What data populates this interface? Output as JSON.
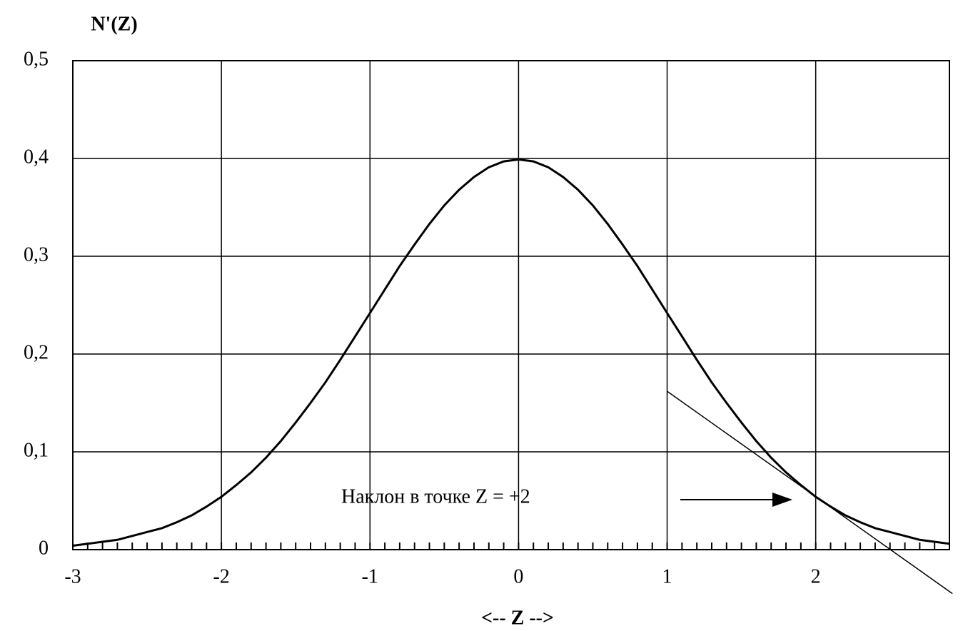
{
  "chart_data": {
    "type": "line",
    "y_label": "N'(Z)",
    "x_label": "<-- Z -->",
    "annotation": "Наклон в точке Z = +2",
    "xlim": [
      -3,
      2.9
    ],
    "ylim": [
      0,
      0.5
    ],
    "xticks": [
      -3,
      -2,
      -1,
      0,
      1,
      2
    ],
    "yticks": [
      0,
      {
        "value": 0.1,
        "label": "0,1"
      },
      {
        "value": 0.2,
        "label": "0,2"
      },
      {
        "value": 0.3,
        "label": "0,3"
      },
      {
        "value": 0.4,
        "label": "0,4"
      },
      {
        "value": 0.5,
        "label": "0,5"
      }
    ],
    "x_minor_step": 0.1,
    "grid": true,
    "color": "#000000",
    "x": [
      -3,
      -2.9,
      -2.8,
      -2.7,
      -2.6,
      -2.5,
      -2.4,
      -2.3,
      -2.2,
      -2.1,
      -2,
      -1.9,
      -1.8,
      -1.7,
      -1.6,
      -1.5,
      -1.4,
      -1.3,
      -1.2,
      -1.1,
      -1,
      -0.9,
      -0.8,
      -0.7,
      -0.6,
      -0.5,
      -0.4,
      -0.3,
      -0.2,
      -0.1,
      0,
      0.1,
      0.2,
      0.3,
      0.4,
      0.5,
      0.6,
      0.7,
      0.8,
      0.9,
      1,
      1.1,
      1.2,
      1.3,
      1.4,
      1.5,
      1.6,
      1.7,
      1.8,
      1.9,
      2,
      2.1,
      2.2,
      2.3,
      2.4,
      2.5,
      2.6,
      2.7,
      2.8,
      2.9
    ],
    "values": [
      0.004,
      0.006,
      0.008,
      0.01,
      0.014,
      0.018,
      0.022,
      0.028,
      0.035,
      0.044,
      0.054,
      0.066,
      0.079,
      0.094,
      0.111,
      0.13,
      0.15,
      0.171,
      0.194,
      0.218,
      0.242,
      0.266,
      0.29,
      0.312,
      0.333,
      0.352,
      0.368,
      0.381,
      0.391,
      0.397,
      0.399,
      0.397,
      0.391,
      0.381,
      0.368,
      0.352,
      0.333,
      0.312,
      0.29,
      0.266,
      0.242,
      0.218,
      0.194,
      0.171,
      0.15,
      0.13,
      0.111,
      0.094,
      0.079,
      0.066,
      0.054,
      0.044,
      0.035,
      0.028,
      0.022,
      0.018,
      0.014,
      0.01,
      0.008,
      0.006
    ],
    "tangent": {
      "x": [
        1,
        2.92
      ],
      "values": [
        0.162,
        -0.045
      ]
    }
  }
}
